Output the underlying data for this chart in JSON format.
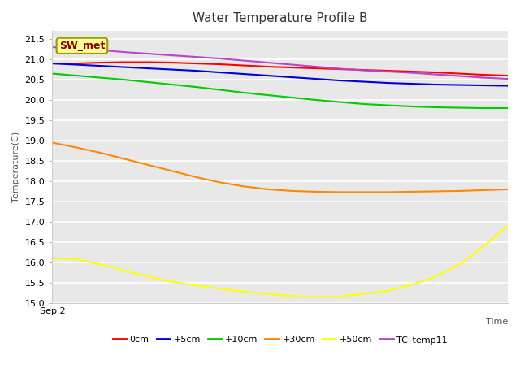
{
  "title": "Water Temperature Profile B",
  "xlabel": "Time",
  "ylabel": "Temperature(C)",
  "annotation": "SW_met",
  "ylim": [
    15.0,
    21.7
  ],
  "yticks": [
    15.0,
    15.5,
    16.0,
    16.5,
    17.0,
    17.5,
    18.0,
    18.5,
    19.0,
    19.5,
    20.0,
    20.5,
    21.0,
    21.5
  ],
  "xstart_label": "Sep 2",
  "series": {
    "0cm": {
      "color": "#ff0000",
      "y": [
        20.9,
        20.9,
        20.92,
        20.93,
        20.93,
        20.92,
        20.9,
        20.88,
        20.85,
        20.82,
        20.8,
        20.78,
        20.76,
        20.74,
        20.72,
        20.7,
        20.68,
        20.65,
        20.62,
        20.6
      ]
    },
    "+5cm": {
      "color": "#0000dd",
      "y": [
        20.9,
        20.87,
        20.84,
        20.81,
        20.78,
        20.75,
        20.72,
        20.68,
        20.64,
        20.6,
        20.56,
        20.52,
        20.48,
        20.45,
        20.42,
        20.4,
        20.38,
        20.37,
        20.36,
        20.35
      ]
    },
    "+10cm": {
      "color": "#00cc00",
      "y": [
        20.65,
        20.6,
        20.55,
        20.5,
        20.44,
        20.38,
        20.32,
        20.25,
        20.18,
        20.12,
        20.06,
        20.0,
        19.95,
        19.9,
        19.87,
        19.84,
        19.82,
        19.81,
        19.8,
        19.8
      ]
    },
    "+30cm": {
      "color": "#ff8800",
      "y": [
        18.95,
        18.83,
        18.7,
        18.55,
        18.4,
        18.25,
        18.1,
        17.97,
        17.87,
        17.8,
        17.76,
        17.74,
        17.73,
        17.73,
        17.73,
        17.74,
        17.75,
        17.76,
        17.78,
        17.8
      ]
    },
    "+50cm": {
      "color": "#ffff00",
      "y": [
        16.1,
        16.08,
        15.95,
        15.8,
        15.65,
        15.52,
        15.43,
        15.35,
        15.28,
        15.22,
        15.17,
        15.15,
        15.16,
        15.22,
        15.3,
        15.45,
        15.65,
        15.95,
        16.4,
        16.9
      ]
    },
    "TC_temp11": {
      "color": "#bb44cc",
      "y": [
        21.3,
        21.27,
        21.23,
        21.18,
        21.14,
        21.1,
        21.06,
        21.02,
        20.97,
        20.92,
        20.87,
        20.82,
        20.77,
        20.73,
        20.7,
        20.67,
        20.63,
        20.59,
        20.55,
        20.52
      ]
    }
  },
  "fig_bg_color": "#ffffff",
  "plot_bg_color": "#e8e8e8",
  "grid_color": "#ffffff",
  "title_fontsize": 11,
  "axis_label_fontsize": 8,
  "tick_fontsize": 8,
  "linewidth": 1.5,
  "annotation_text_color": "#880000",
  "annotation_bg_color": "#ffff99",
  "annotation_edge_color": "#999900"
}
